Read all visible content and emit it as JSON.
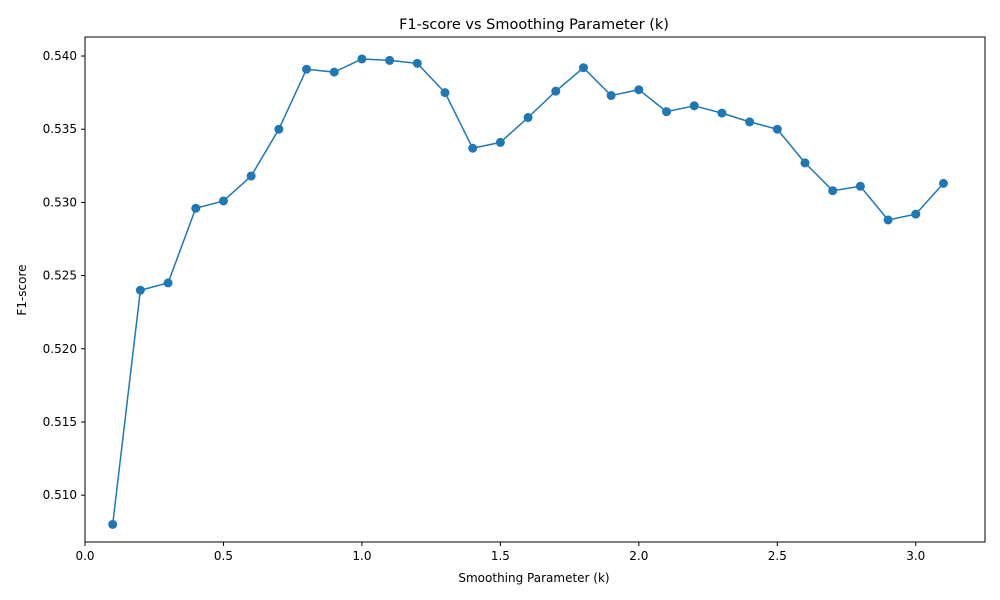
{
  "chart_data": {
    "type": "line",
    "title": "F1-score vs Smoothing Parameter (k)",
    "xlabel": "Smoothing Parameter (k)",
    "ylabel": "F1-score",
    "xlim": [
      -0.0,
      3.25
    ],
    "ylim": [
      0.5068,
      0.5413
    ],
    "xticks": [
      "0.0",
      "0.5",
      "1.0",
      "1.5",
      "2.0",
      "2.5",
      "3.0"
    ],
    "yticks": [
      "0.510",
      "0.515",
      "0.520",
      "0.525",
      "0.530",
      "0.535",
      "0.540"
    ],
    "grid": false,
    "legend": "none",
    "series": [
      {
        "color": "#1f77b4",
        "marker": "circle",
        "x": [
          0.1,
          0.2,
          0.3,
          0.4,
          0.5,
          0.6,
          0.7,
          0.8,
          0.9,
          1.0,
          1.1,
          1.2,
          1.3,
          1.4,
          1.5,
          1.6,
          1.7,
          1.8,
          1.9,
          2.0,
          2.1,
          2.2,
          2.3,
          2.4,
          2.5,
          2.6,
          2.7,
          2.8,
          2.9,
          3.0,
          3.1
        ],
        "y": [
          0.508,
          0.524,
          0.5245,
          0.5296,
          0.5301,
          0.5318,
          0.535,
          0.5391,
          0.5389,
          0.5398,
          0.5397,
          0.5395,
          0.5375,
          0.5337,
          0.5341,
          0.5358,
          0.5376,
          0.5392,
          0.5373,
          0.5377,
          0.5362,
          0.5366,
          0.5361,
          0.5355,
          0.535,
          0.5327,
          0.5308,
          0.5311,
          0.5288,
          0.5292,
          0.5313
        ]
      }
    ]
  }
}
